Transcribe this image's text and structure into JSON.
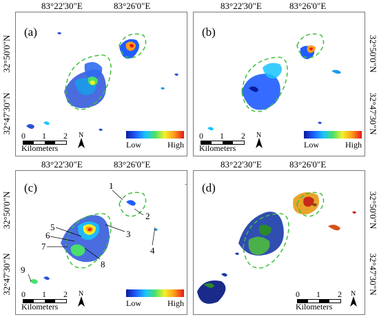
{
  "figure": {
    "lon_labels": [
      "83°22'30\"E",
      "83°26'0\"E"
    ],
    "lat_labels": [
      "32°50'0\"N",
      "32°47'30\"N"
    ]
  },
  "panels": [
    {
      "label": "(a)",
      "has_legend": true,
      "has_callouts": false
    },
    {
      "label": "(b)",
      "has_legend": true,
      "has_callouts": false
    },
    {
      "label": "(c)",
      "has_legend": true,
      "has_callouts": true
    },
    {
      "label": "(d)",
      "has_legend": false,
      "has_callouts": false
    }
  ],
  "scale_bar": {
    "ticks": [
      "0",
      "1",
      "2"
    ],
    "unit": "Kilometers"
  },
  "north_arrow": {
    "letter": "N"
  },
  "legend": {
    "low": "Low",
    "high": "High",
    "colors": [
      "#0a1a9c",
      "#1f5cff",
      "#19c3ff",
      "#4ae06a",
      "#f4f02a",
      "#ff9a1a",
      "#e4181a"
    ]
  },
  "callouts": [
    "1",
    "2",
    "3",
    "4",
    "5",
    "6",
    "7",
    "8",
    "9"
  ],
  "colors": {
    "outline": "#3dbf3d",
    "panel_border": "#777777"
  }
}
